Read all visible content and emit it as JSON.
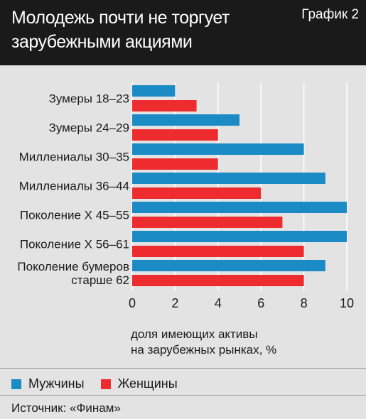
{
  "header": {
    "title_lines": [
      "Молодежь почти не торгует",
      "зарубежными акциями"
    ],
    "graph_label": "График 2"
  },
  "chart_data": {
    "type": "bar",
    "orientation": "horizontal",
    "categories": [
      [
        "Зумеры 18–23"
      ],
      [
        "Зумеры 24–29"
      ],
      [
        "Миллениалы 30–35"
      ],
      [
        "Миллениалы 36–44"
      ],
      [
        "Поколение Х 45–55"
      ],
      [
        "Поколение Х 56–61"
      ],
      [
        "Поколение бумеров",
        "старше 62"
      ]
    ],
    "series": [
      {
        "name": "Мужчины",
        "color": "#1a8bc4",
        "values": [
          2,
          5,
          8,
          9,
          10,
          10,
          9
        ]
      },
      {
        "name": "Женщины",
        "color": "#ee2b2e",
        "values": [
          3,
          4,
          4,
          6,
          7,
          8,
          8
        ]
      }
    ],
    "xlim": [
      0,
      10
    ],
    "xticks": [
      0,
      2,
      4,
      6,
      8,
      10
    ],
    "xlabel_lines": [
      "доля имеющих активы",
      "на зарубежных рынках, %"
    ],
    "grid": true,
    "legend_placement": "bottom"
  },
  "source": "Источник: «Финам»"
}
